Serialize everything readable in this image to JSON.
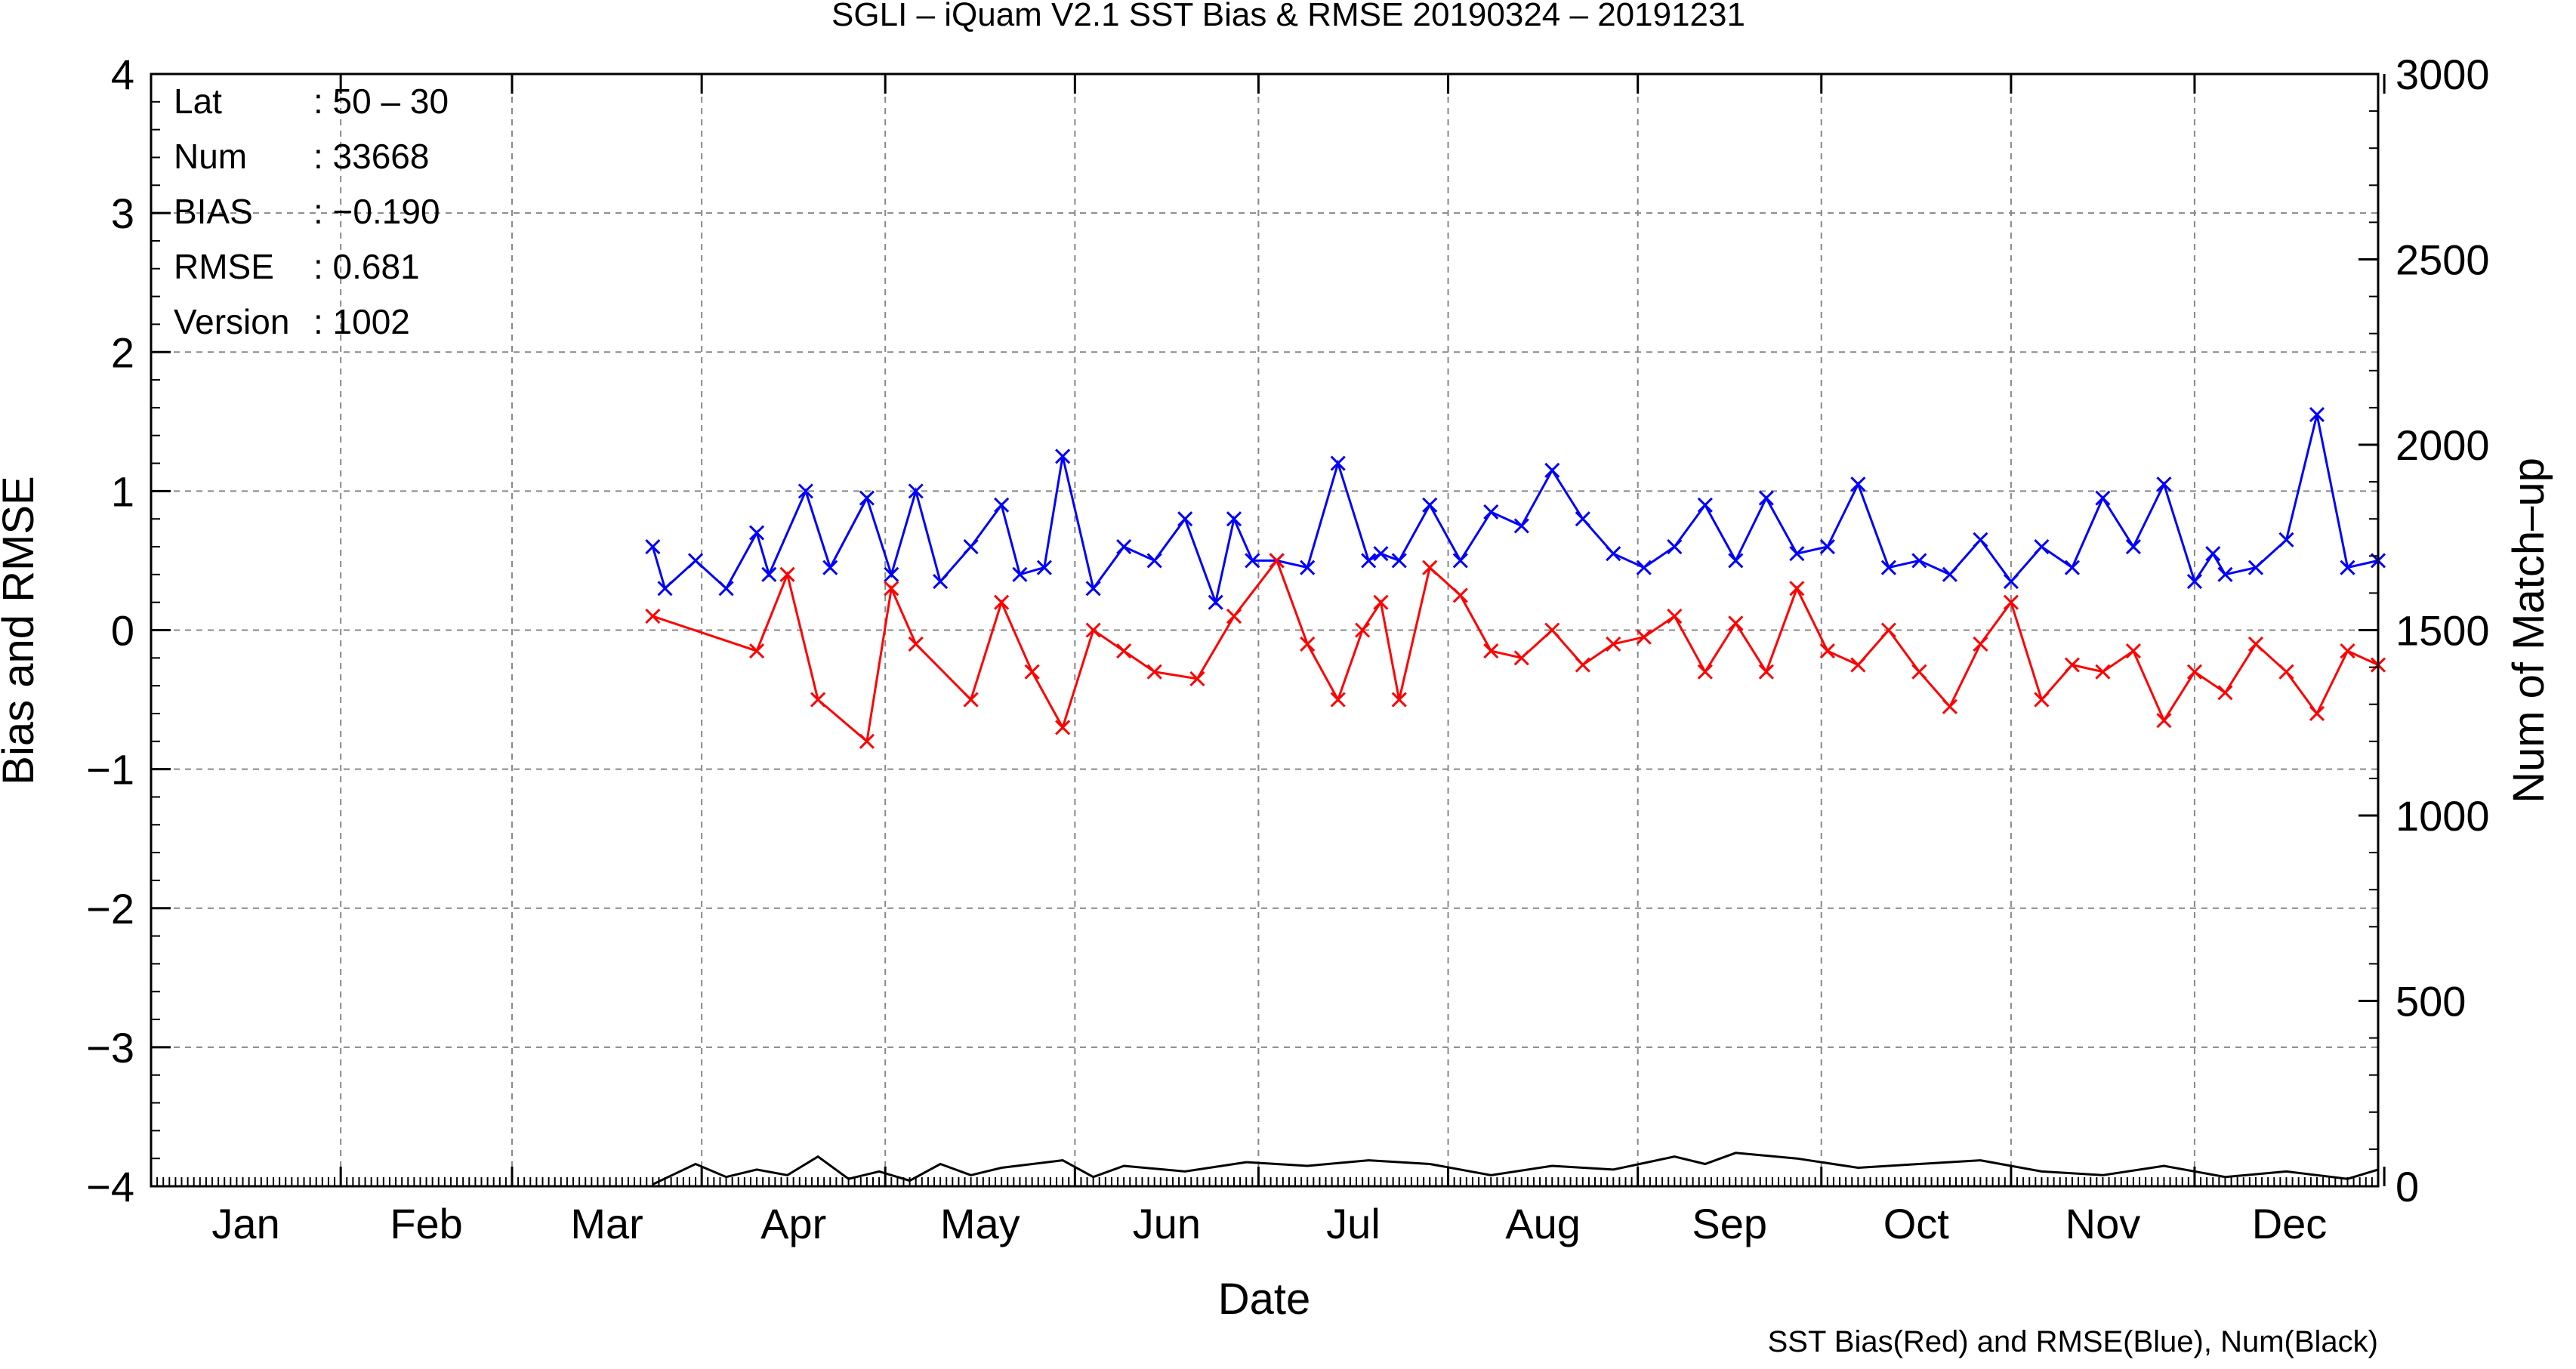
{
  "chart_data": {
    "type": "line",
    "title": "SGLI – iQuam V2.1 SST Bias & RMSE 20190324 – 20191231",
    "xlabel": "Date",
    "ylabel": "Bias and RMSE",
    "y2label": "Num of Match–up",
    "footer": "SST Bias(Red) and RMSE(Blue), Num(Black)",
    "x_tick_labels": [
      "Jan",
      "Feb",
      "Mar",
      "Apr",
      "May",
      "Jun",
      "Jul",
      "Aug",
      "Sep",
      "Oct",
      "Nov",
      "Dec"
    ],
    "xlim_day_of_year": [
      1,
      365
    ],
    "y_tick_labels": [
      "4",
      "3",
      "2",
      "1",
      "0",
      "−1",
      "−2",
      "−3",
      "−4"
    ],
    "ylim": [
      -4,
      4
    ],
    "y2_tick_labels": [
      "3000",
      "2500",
      "2000",
      "1500",
      "1000",
      "500",
      "0"
    ],
    "y2lim": [
      0,
      3000
    ],
    "grid": true,
    "info_box": [
      {
        "label": "Lat",
        "value": ": 50 – 30"
      },
      {
        "label": "Num",
        "value": ": 33668"
      },
      {
        "label": "BIAS",
        "value": ": −0.190"
      },
      {
        "label": "RMSE",
        "value": ": 0.681"
      },
      {
        "label": "Version",
        "value": ": 1002"
      }
    ],
    "series": [
      {
        "color": "#ff0000",
        "marker": "x",
        "axis": "left",
        "x": [
          83,
          100,
          105,
          110,
          118,
          122,
          126,
          135,
          140,
          145,
          150,
          155,
          160,
          165,
          172,
          178,
          185,
          190,
          195,
          199,
          202,
          205,
          210,
          215,
          220,
          225,
          230,
          235,
          240,
          245,
          250,
          255,
          260,
          265,
          270,
          275,
          280,
          285,
          290,
          295,
          300,
          305,
          310,
          315,
          320,
          325,
          330,
          335,
          340,
          345,
          350,
          355,
          360,
          365
        ],
        "y": [
          0.1,
          -0.15,
          0.4,
          -0.5,
          -0.8,
          0.3,
          -0.1,
          -0.5,
          0.2,
          -0.3,
          -0.7,
          0.0,
          -0.15,
          -0.3,
          -0.35,
          0.1,
          0.5,
          -0.1,
          -0.5,
          0.0,
          0.2,
          -0.5,
          0.45,
          0.25,
          -0.15,
          -0.2,
          0.0,
          -0.25,
          -0.1,
          -0.05,
          0.1,
          -0.3,
          0.05,
          -0.3,
          0.3,
          -0.15,
          -0.25,
          0.0,
          -0.3,
          -0.55,
          -0.1,
          0.2,
          -0.5,
          -0.25,
          -0.3,
          -0.15,
          -0.65,
          -0.3,
          -0.45,
          -0.1,
          -0.3,
          -0.6,
          -0.15,
          -0.25
        ]
      },
      {
        "color": "#0000ff",
        "marker": "x",
        "axis": "left",
        "x": [
          83,
          85,
          90,
          95,
          100,
          102,
          108,
          112,
          118,
          122,
          126,
          130,
          135,
          140,
          143,
          147,
          150,
          155,
          160,
          165,
          170,
          175,
          178,
          181,
          185,
          190,
          195,
          200,
          202,
          205,
          210,
          215,
          220,
          225,
          230,
          235,
          240,
          245,
          250,
          255,
          260,
          265,
          270,
          275,
          280,
          285,
          290,
          295,
          300,
          305,
          310,
          315,
          320,
          325,
          330,
          335,
          338,
          340,
          345,
          350,
          355,
          360,
          365
        ],
        "y": [
          0.6,
          0.3,
          0.5,
          0.3,
          0.7,
          0.4,
          1.0,
          0.45,
          0.95,
          0.4,
          1.0,
          0.35,
          0.6,
          0.9,
          0.4,
          0.45,
          1.25,
          0.3,
          0.6,
          0.5,
          0.8,
          0.2,
          0.8,
          0.5,
          0.5,
          0.45,
          1.2,
          0.5,
          0.55,
          0.5,
          0.9,
          0.5,
          0.85,
          0.75,
          1.15,
          0.8,
          0.55,
          0.45,
          0.6,
          0.9,
          0.5,
          0.95,
          0.55,
          0.6,
          1.05,
          0.45,
          0.5,
          0.4,
          0.65,
          0.35,
          0.6,
          0.45,
          0.95,
          0.6,
          1.05,
          0.35,
          0.55,
          0.4,
          0.45,
          0.65,
          1.55,
          0.45,
          0.5
        ]
      },
      {
        "color": "#000000",
        "marker": "none",
        "axis": "right",
        "x": [
          83,
          90,
          95,
          100,
          105,
          110,
          115,
          120,
          125,
          130,
          135,
          140,
          150,
          155,
          160,
          170,
          180,
          190,
          200,
          210,
          220,
          230,
          240,
          250,
          255,
          260,
          270,
          280,
          290,
          300,
          310,
          320,
          330,
          340,
          350,
          360,
          365
        ],
        "y": [
          5,
          60,
          25,
          45,
          30,
          80,
          20,
          40,
          15,
          60,
          30,
          50,
          70,
          25,
          55,
          40,
          65,
          55,
          70,
          60,
          30,
          55,
          45,
          80,
          60,
          90,
          75,
          50,
          60,
          70,
          40,
          30,
          55,
          25,
          40,
          20,
          45
        ]
      }
    ]
  }
}
